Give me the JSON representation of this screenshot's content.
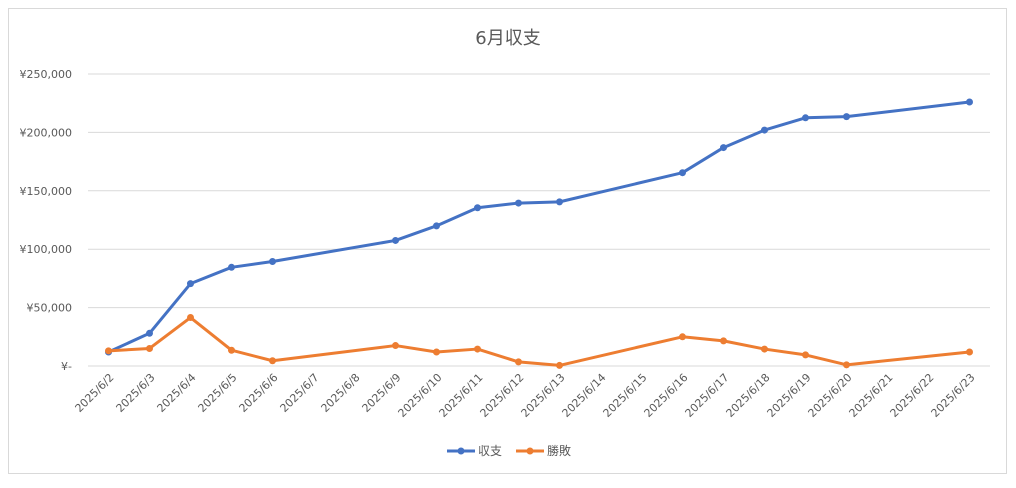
{
  "chart_data": {
    "type": "line",
    "title": "6月収支",
    "xlabel": "",
    "ylabel": "",
    "ylim": [
      0,
      250000
    ],
    "y_ticks": [
      0,
      50000,
      100000,
      150000,
      200000,
      250000
    ],
    "y_tick_labels": [
      "¥-",
      "¥50,000",
      "¥100,000",
      "¥150,000",
      "¥200,000",
      "¥250,000"
    ],
    "categories": [
      "2025/6/2",
      "2025/6/3",
      "2025/6/4",
      "2025/6/5",
      "2025/6/6",
      "2025/6/7",
      "2025/6/8",
      "2025/6/9",
      "2025/6/10",
      "2025/6/11",
      "2025/6/12",
      "2025/6/13",
      "2025/6/14",
      "2025/6/15",
      "2025/6/16",
      "2025/6/17",
      "2025/6/18",
      "2025/6/19",
      "2025/6/20",
      "2025/6/21",
      "2025/6/22",
      "2025/6/23"
    ],
    "grid": true,
    "legend_position": "bottom",
    "series": [
      {
        "name": "収支",
        "color": "#4472C4",
        "values": [
          12000,
          28000,
          70500,
          84500,
          89500,
          null,
          null,
          107500,
          120000,
          135500,
          139500,
          140500,
          null,
          null,
          165500,
          187000,
          202000,
          212500,
          213500,
          null,
          null,
          226000
        ]
      },
      {
        "name": "勝敗",
        "color": "#ED7D31",
        "values": [
          13000,
          15000,
          41500,
          13500,
          4500,
          null,
          null,
          17500,
          12000,
          14500,
          3500,
          500,
          null,
          null,
          25000,
          21500,
          14500,
          9500,
          1000,
          null,
          null,
          12000
        ]
      }
    ]
  }
}
